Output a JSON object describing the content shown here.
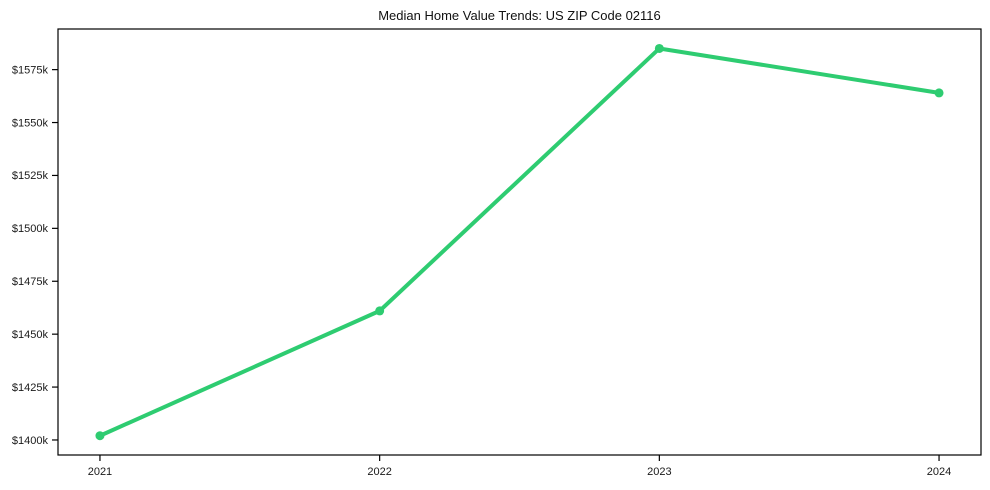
{
  "chart_data": {
    "type": "line",
    "title": "Median Home Value Trends: US ZIP Code 02116",
    "x": [
      2021,
      2022,
      2023,
      2024
    ],
    "values": [
      1402,
      1461,
      1585,
      1564
    ],
    "units": "USD thousands (values shown as $Nk)",
    "xlabel": "",
    "ylabel": "",
    "xlim": [
      2020.85,
      2024.15
    ],
    "ylim": [
      1392.9,
      1594.2
    ],
    "xticks": [
      {
        "value": 2021,
        "label": "2021"
      },
      {
        "value": 2022,
        "label": "2022"
      },
      {
        "value": 2023,
        "label": "2023"
      },
      {
        "value": 2024,
        "label": "2024"
      }
    ],
    "yticks": [
      {
        "value": 1400,
        "label": "$1400k"
      },
      {
        "value": 1425,
        "label": "$1425k"
      },
      {
        "value": 1450,
        "label": "$1450k"
      },
      {
        "value": 1475,
        "label": "$1475k"
      },
      {
        "value": 1500,
        "label": "$1500k"
      },
      {
        "value": 1525,
        "label": "$1525k"
      },
      {
        "value": 1550,
        "label": "$1550k"
      },
      {
        "value": 1575,
        "label": "$1575k"
      }
    ],
    "grid": false,
    "legend": "none",
    "line_color": "#2ecc71",
    "marker": "circle",
    "axis_color": "#000000",
    "background_color": "#ffffff"
  }
}
